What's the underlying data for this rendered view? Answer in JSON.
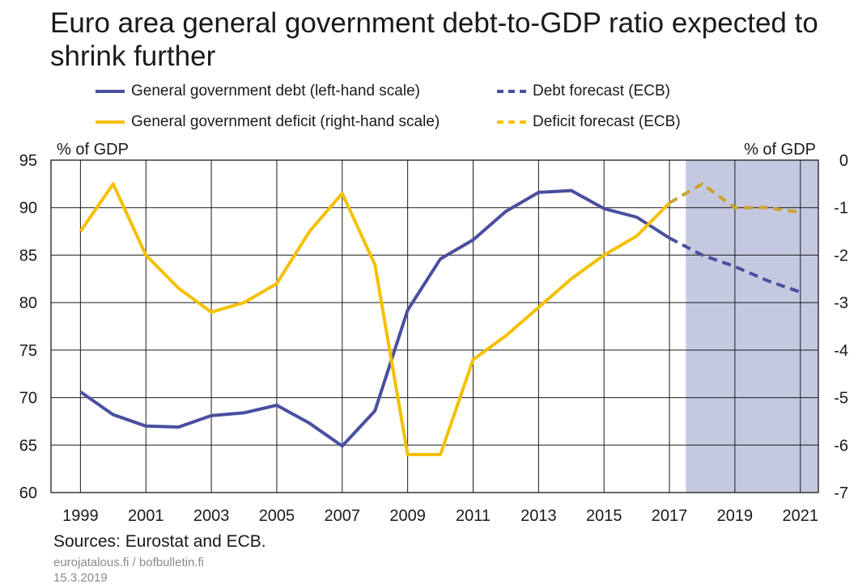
{
  "title": "Euro area general government debt-to-GDP ratio expected to shrink further",
  "legend": {
    "debt": "General government debt (left-hand scale)",
    "debt_forecast": "Debt forecast (ECB)",
    "deficit": "General government deficit (right-hand scale)",
    "deficit_forecast": "Deficit forecast (ECB)"
  },
  "footer": {
    "sources": "Sources: Eurostat and ECB.",
    "site": "eurojatalous.fi / bofbulletin.fi",
    "date": "15.3.2019"
  },
  "colors": {
    "debt": "#4a4f9f",
    "deficit": "#f5c000",
    "deficit_forecast": "#c9a434",
    "forecast_shade": "#c5c9e0"
  },
  "chart_data": {
    "type": "line",
    "x_ticks": [
      "1999",
      "2001",
      "2003",
      "2005",
      "2007",
      "2009",
      "2011",
      "2013",
      "2015",
      "2017",
      "2019",
      "2021"
    ],
    "xlim": [
      1999,
      2021
    ],
    "forecast_start": 2017.5,
    "y_left": {
      "label": "% of GDP",
      "lim": [
        60,
        95
      ],
      "ticks": [
        "60",
        "65",
        "70",
        "75",
        "80",
        "85",
        "90",
        "95"
      ]
    },
    "y_right": {
      "label": "% of GDP",
      "lim": [
        -7,
        0
      ],
      "ticks": [
        "-7",
        "-6",
        "-5",
        "-4",
        "-3",
        "-2",
        "-1",
        "0"
      ]
    },
    "grid": true,
    "series": [
      {
        "name": "General government debt (left-hand scale)",
        "axis": "left",
        "style": "solid",
        "x": [
          1999,
          2000,
          2001,
          2002,
          2003,
          2004,
          2005,
          2006,
          2007,
          2008,
          2009,
          2010,
          2011,
          2012,
          2013,
          2014,
          2015,
          2016,
          2017
        ],
        "y": [
          70.6,
          68.2,
          67.0,
          66.9,
          68.1,
          68.4,
          69.2,
          67.3,
          64.9,
          68.6,
          79.2,
          84.6,
          86.6,
          89.6,
          91.6,
          91.8,
          89.9,
          89.0,
          86.8
        ]
      },
      {
        "name": "Debt forecast (ECB)",
        "axis": "left",
        "style": "dashed",
        "x": [
          2017,
          2018,
          2019,
          2020,
          2021
        ],
        "y": [
          86.8,
          85.0,
          83.8,
          82.3,
          81.1
        ]
      },
      {
        "name": "General government deficit (right-hand scale)",
        "axis": "right",
        "style": "solid",
        "x": [
          1999,
          2000,
          2001,
          2002,
          2003,
          2004,
          2005,
          2006,
          2007,
          2008,
          2009,
          2010,
          2011,
          2012,
          2013,
          2014,
          2015,
          2016,
          2017
        ],
        "y": [
          -1.5,
          -0.5,
          -2.0,
          -2.7,
          -3.2,
          -3.0,
          -2.6,
          -1.5,
          -0.7,
          -2.2,
          -6.2,
          -6.2,
          -4.2,
          -3.7,
          -3.1,
          -2.5,
          -2.0,
          -1.6,
          -0.9
        ]
      },
      {
        "name": "Deficit forecast (ECB)",
        "axis": "right",
        "style": "dashed",
        "x": [
          2017,
          2018,
          2019,
          2020,
          2021
        ],
        "y": [
          -0.9,
          -0.5,
          -1.0,
          -1.0,
          -1.1
        ]
      }
    ]
  }
}
